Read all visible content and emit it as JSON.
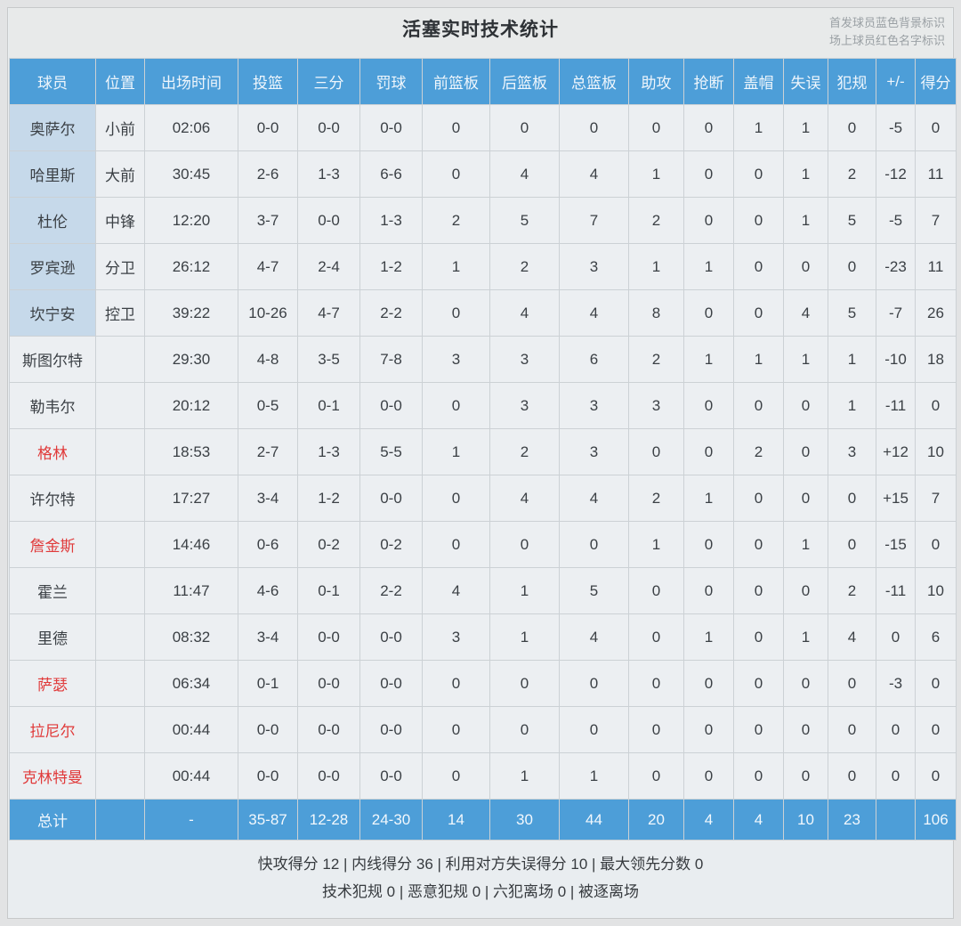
{
  "title": "活塞实时技术统计",
  "legend": {
    "starter_note": "首发球员蓝色背景标识",
    "on_court_note": "场上球员红色名字标识"
  },
  "colors": {
    "header_blue": "#4d9ed8",
    "starter_name_bg": "#c6d9ea",
    "on_court_red": "#e03a3a",
    "cell_bg": "#eceff2"
  },
  "chart_data": {
    "type": "table",
    "title": "活塞实时技术统计",
    "columns": [
      "球员",
      "位置",
      "出场时间",
      "投篮",
      "三分",
      "罚球",
      "前篮板",
      "后篮板",
      "总篮板",
      "助攻",
      "抢断",
      "盖帽",
      "失误",
      "犯规",
      "+/-",
      "得分"
    ],
    "rows": [
      {
        "name": "奥萨尔",
        "position": "小前",
        "starter": true,
        "on_court": false,
        "cells": [
          "02:06",
          "0-0",
          "0-0",
          "0-0",
          "0",
          "0",
          "0",
          "0",
          "0",
          "1",
          "1",
          "0",
          "-5",
          "0"
        ]
      },
      {
        "name": "哈里斯",
        "position": "大前",
        "starter": true,
        "on_court": false,
        "cells": [
          "30:45",
          "2-6",
          "1-3",
          "6-6",
          "0",
          "4",
          "4",
          "1",
          "0",
          "0",
          "1",
          "2",
          "-12",
          "11"
        ]
      },
      {
        "name": "杜伦",
        "position": "中锋",
        "starter": true,
        "on_court": false,
        "cells": [
          "12:20",
          "3-7",
          "0-0",
          "1-3",
          "2",
          "5",
          "7",
          "2",
          "0",
          "0",
          "1",
          "5",
          "-5",
          "7"
        ]
      },
      {
        "name": "罗宾逊",
        "position": "分卫",
        "starter": true,
        "on_court": false,
        "cells": [
          "26:12",
          "4-7",
          "2-4",
          "1-2",
          "1",
          "2",
          "3",
          "1",
          "1",
          "0",
          "0",
          "0",
          "-23",
          "11"
        ]
      },
      {
        "name": "坎宁安",
        "position": "控卫",
        "starter": true,
        "on_court": false,
        "cells": [
          "39:22",
          "10-26",
          "4-7",
          "2-2",
          "0",
          "4",
          "4",
          "8",
          "0",
          "0",
          "4",
          "5",
          "-7",
          "26"
        ]
      },
      {
        "name": "斯图尔特",
        "position": "",
        "starter": false,
        "on_court": false,
        "cells": [
          "29:30",
          "4-8",
          "3-5",
          "7-8",
          "3",
          "3",
          "6",
          "2",
          "1",
          "1",
          "1",
          "1",
          "-10",
          "18"
        ]
      },
      {
        "name": "勒韦尔",
        "position": "",
        "starter": false,
        "on_court": false,
        "cells": [
          "20:12",
          "0-5",
          "0-1",
          "0-0",
          "0",
          "3",
          "3",
          "3",
          "0",
          "0",
          "0",
          "1",
          "-11",
          "0"
        ]
      },
      {
        "name": "格林",
        "position": "",
        "starter": false,
        "on_court": true,
        "cells": [
          "18:53",
          "2-7",
          "1-3",
          "5-5",
          "1",
          "2",
          "3",
          "0",
          "0",
          "2",
          "0",
          "3",
          "+12",
          "10"
        ]
      },
      {
        "name": "许尔特",
        "position": "",
        "starter": false,
        "on_court": false,
        "cells": [
          "17:27",
          "3-4",
          "1-2",
          "0-0",
          "0",
          "4",
          "4",
          "2",
          "1",
          "0",
          "0",
          "0",
          "+15",
          "7"
        ]
      },
      {
        "name": "詹金斯",
        "position": "",
        "starter": false,
        "on_court": true,
        "cells": [
          "14:46",
          "0-6",
          "0-2",
          "0-2",
          "0",
          "0",
          "0",
          "1",
          "0",
          "0",
          "1",
          "0",
          "-15",
          "0"
        ]
      },
      {
        "name": "霍兰",
        "position": "",
        "starter": false,
        "on_court": false,
        "cells": [
          "11:47",
          "4-6",
          "0-1",
          "2-2",
          "4",
          "1",
          "5",
          "0",
          "0",
          "0",
          "0",
          "2",
          "-11",
          "10"
        ]
      },
      {
        "name": "里德",
        "position": "",
        "starter": false,
        "on_court": false,
        "cells": [
          "08:32",
          "3-4",
          "0-0",
          "0-0",
          "3",
          "1",
          "4",
          "0",
          "1",
          "0",
          "1",
          "4",
          "0",
          "6"
        ]
      },
      {
        "name": "萨瑟",
        "position": "",
        "starter": false,
        "on_court": true,
        "cells": [
          "06:34",
          "0-1",
          "0-0",
          "0-0",
          "0",
          "0",
          "0",
          "0",
          "0",
          "0",
          "0",
          "0",
          "-3",
          "0"
        ]
      },
      {
        "name": "拉尼尔",
        "position": "",
        "starter": false,
        "on_court": true,
        "cells": [
          "00:44",
          "0-0",
          "0-0",
          "0-0",
          "0",
          "0",
          "0",
          "0",
          "0",
          "0",
          "0",
          "0",
          "0",
          "0"
        ]
      },
      {
        "name": "克林特曼",
        "position": "",
        "starter": false,
        "on_court": true,
        "cells": [
          "00:44",
          "0-0",
          "0-0",
          "0-0",
          "0",
          "1",
          "1",
          "0",
          "0",
          "0",
          "0",
          "0",
          "0",
          "0"
        ]
      }
    ],
    "totals": {
      "name": "总计",
      "position": "",
      "cells": [
        "-",
        "35-87",
        "12-28",
        "24-30",
        "14",
        "30",
        "44",
        "20",
        "4",
        "4",
        "10",
        "23",
        "",
        "106"
      ]
    }
  },
  "footer": {
    "separator": " | ",
    "line1_items": [
      {
        "label": "快攻得分",
        "value": "12"
      },
      {
        "label": "内线得分",
        "value": "36"
      },
      {
        "label": "利用对方失误得分",
        "value": "10"
      },
      {
        "label": "最大领先分数",
        "value": "0"
      }
    ],
    "line2_items": [
      {
        "label": "技术犯规",
        "value": "0"
      },
      {
        "label": "恶意犯规",
        "value": "0"
      },
      {
        "label": "六犯离场",
        "value": "0"
      },
      {
        "label": "被逐离场",
        "value": ""
      }
    ]
  }
}
